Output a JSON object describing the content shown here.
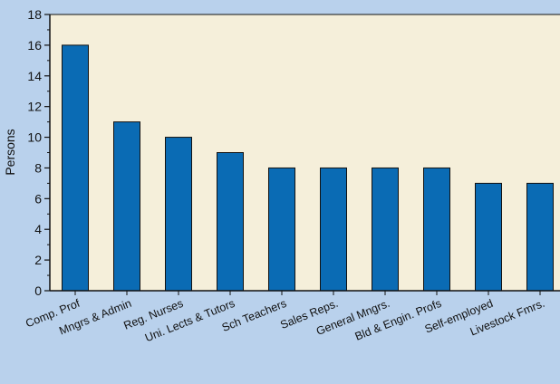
{
  "chart_data": {
    "type": "bar",
    "title": "",
    "xlabel": "",
    "ylabel": "Persons",
    "ylim": [
      0,
      18
    ],
    "yticks": [
      0,
      2,
      4,
      6,
      8,
      10,
      12,
      14,
      16,
      18
    ],
    "grid": false,
    "legend": "none",
    "categories": [
      "Comp. Prof",
      "Mngrs & Admin",
      "Reg. Nurses",
      "Uni. Lects & Tutors",
      "Sch Teachers",
      "Sales Reps.",
      "General Mngrs.",
      "Bld & Engin. Profs",
      "Self-employed",
      "Livestock Fmrs."
    ],
    "values": [
      16,
      11,
      10,
      9,
      8,
      8,
      8,
      8,
      7,
      7
    ],
    "colors": {
      "background": "#b9d1ec",
      "plot_area": "#f5efda",
      "bar": "#0a6bb4",
      "bar_outline": "#111111"
    }
  }
}
